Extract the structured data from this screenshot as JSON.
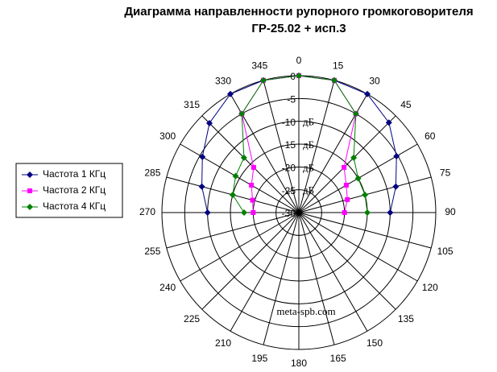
{
  "chart_data": {
    "type": "polar",
    "title": "Диаграмма направленности рупорного громкоговорителя",
    "subtitle": "ГР-25.02 + исп.3",
    "watermark": "meta-spb.com",
    "radial_unit": "дБ",
    "x": [
      270,
      285,
      300,
      315,
      330,
      345,
      0,
      15,
      30,
      45,
      60,
      75,
      90
    ],
    "xticks": [
      0,
      15,
      30,
      45,
      60,
      75,
      90,
      105,
      120,
      135,
      150,
      165,
      180,
      195,
      210,
      225,
      240,
      255,
      270,
      285,
      300,
      315,
      330,
      345
    ],
    "ylim": [
      -30,
      0
    ],
    "yticks": [
      -30,
      -25,
      -20,
      -15,
      -10,
      -5,
      0
    ],
    "grid": true,
    "legend": "left",
    "series": [
      {
        "name": "Частота 1 КГц",
        "color": "#000080",
        "marker": "diamond",
        "values": [
          -10,
          -8,
          -5.6,
          -2.3,
          0,
          0,
          0,
          0,
          0,
          -2.1,
          -5.3,
          -8,
          -10
        ]
      },
      {
        "name": "Частота 2 КГц",
        "color": "#ff00ff",
        "marker": "square",
        "values": [
          -20,
          -19.5,
          -18,
          -16,
          -5,
          0,
          0,
          0,
          -5,
          -16,
          -18,
          -19,
          -20
        ]
      },
      {
        "name": "Частота 4 КГц",
        "color": "#008000",
        "marker": "diamond",
        "values": [
          -18,
          -15,
          -14,
          -13,
          -5,
          0,
          0,
          0,
          -5,
          -13,
          -15,
          -15,
          -15
        ]
      }
    ]
  }
}
